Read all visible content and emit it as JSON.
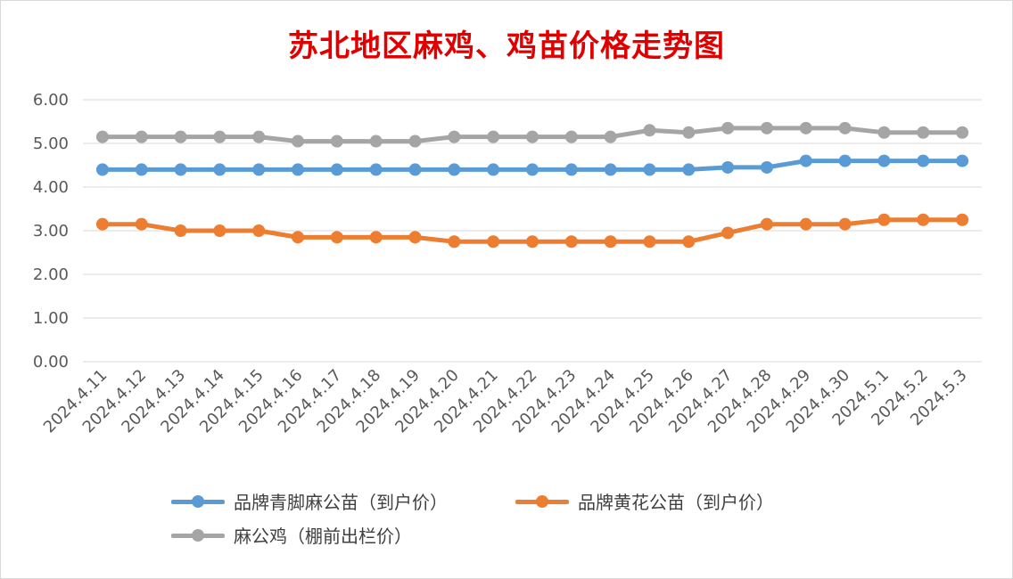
{
  "chart_data": {
    "type": "line",
    "title": "苏北地区麻鸡、鸡苗价格走势图",
    "categories": [
      "2024.4.11",
      "2024.4.12",
      "2024.4.13",
      "2024.4.14",
      "2024.4.15",
      "2024.4.16",
      "2024.4.17",
      "2024.4.18",
      "2024.4.19",
      "2024.4.20",
      "2024.4.21",
      "2024.4.22",
      "2024.4.23",
      "2024.4.24",
      "2024.4.25",
      "2024.4.26",
      "2024.4.27",
      "2024.4.28",
      "2024.4.29",
      "2024.4.30",
      "2024.5.1",
      "2024.5.2",
      "2024.5.3"
    ],
    "series": [
      {
        "name": "品牌青脚麻公苗（到户价）",
        "color": "#5b9bd5",
        "values": [
          4.4,
          4.4,
          4.4,
          4.4,
          4.4,
          4.4,
          4.4,
          4.4,
          4.4,
          4.4,
          4.4,
          4.4,
          4.4,
          4.4,
          4.4,
          4.4,
          4.45,
          4.45,
          4.6,
          4.6,
          4.6,
          4.6,
          4.6
        ]
      },
      {
        "name": "品牌黄花公苗（到户价）",
        "color": "#ed7d31",
        "values": [
          3.15,
          3.15,
          3.0,
          3.0,
          3.0,
          2.85,
          2.85,
          2.85,
          2.85,
          2.75,
          2.75,
          2.75,
          2.75,
          2.75,
          2.75,
          2.75,
          2.95,
          3.15,
          3.15,
          3.15,
          3.25,
          3.25,
          3.25
        ]
      },
      {
        "name": "麻公鸡（棚前出栏价）",
        "color": "#a5a5a5",
        "values": [
          5.15,
          5.15,
          5.15,
          5.15,
          5.15,
          5.05,
          5.05,
          5.05,
          5.05,
          5.15,
          5.15,
          5.15,
          5.15,
          5.15,
          5.3,
          5.25,
          5.35,
          5.35,
          5.35,
          5.35,
          5.25,
          5.25,
          5.25
        ]
      }
    ],
    "ylim": [
      0,
      6
    ],
    "yticks": [
      "0.00",
      "1.00",
      "2.00",
      "3.00",
      "4.00",
      "5.00",
      "6.00"
    ],
    "grid": true,
    "legend_position": "bottom",
    "title_color": "#e00000",
    "grid_color": "#d9d9d9"
  }
}
